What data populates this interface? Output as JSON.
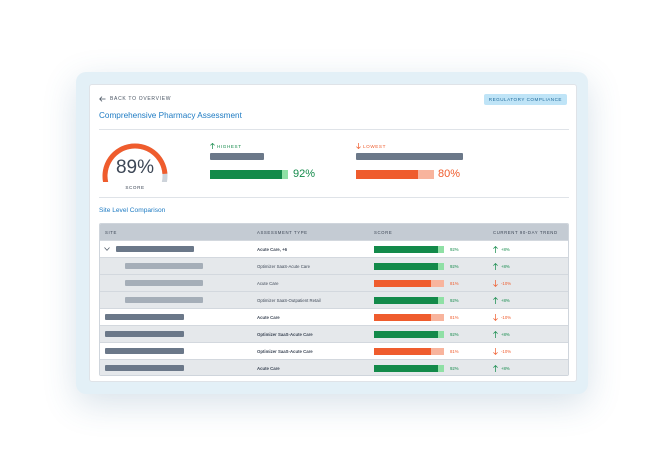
{
  "nav": {
    "back_label": "BACK TO OVERVIEW"
  },
  "badge": {
    "label": "REGULATORY COMPLIANCE"
  },
  "page": {
    "title": "Comprehensive Pharmacy Assessment"
  },
  "score": {
    "value": "89%",
    "label": "SCORE",
    "fraction": 0.89
  },
  "highest": {
    "heading": "HIGHEST",
    "percent": "92%",
    "fraction": 0.92
  },
  "lowest": {
    "heading": "LOWEST",
    "percent": "80%",
    "fraction": 0.8
  },
  "comparison": {
    "title": "Site Level Comparison",
    "columns": [
      "SITE",
      "ASSESSMENT TYPE",
      "SCORE",
      "CURRENT 90-DAY TREND"
    ],
    "rows": [
      {
        "level": "parent",
        "expanded": true,
        "type": "Acute Care, +6",
        "bold": true,
        "score_label": "92%",
        "score": 0.92,
        "status": "good",
        "trend": "+8%",
        "direction": "up"
      },
      {
        "level": "child",
        "type": "Optimizer SaaS-Acute Care",
        "bold": false,
        "score_label": "92%",
        "score": 0.92,
        "status": "good",
        "trend": "+8%",
        "direction": "up"
      },
      {
        "level": "child",
        "type": "Acute Care",
        "bold": false,
        "score_label": "81%",
        "score": 0.81,
        "status": "bad",
        "trend": "-10%",
        "direction": "down"
      },
      {
        "level": "child",
        "type": "Optimizer SaaS-Outpatient Retail",
        "bold": false,
        "score_label": "92%",
        "score": 0.92,
        "status": "good",
        "trend": "+8%",
        "direction": "up"
      },
      {
        "level": "site",
        "type": "Acute Care",
        "bold": true,
        "score_label": "81%",
        "score": 0.81,
        "status": "bad",
        "trend": "-10%",
        "direction": "down"
      },
      {
        "level": "site",
        "type": "Optimizer SaaS-Acute Care",
        "bold": true,
        "score_label": "92%",
        "score": 0.92,
        "status": "good",
        "trend": "+8%",
        "direction": "up"
      },
      {
        "level": "site",
        "type": "Optimizer SaaS-Acute Care",
        "bold": true,
        "score_label": "81%",
        "score": 0.81,
        "status": "bad",
        "trend": "-10%",
        "direction": "down"
      },
      {
        "level": "site",
        "type": "Acute Care",
        "bold": true,
        "score_label": "92%",
        "score": 0.92,
        "status": "good",
        "trend": "+8%",
        "direction": "up"
      }
    ]
  },
  "colors": {
    "good": "#138a4a",
    "good_light": "#8fe0a5",
    "bad": "#ef5c2d",
    "bad_light": "#f8b49d",
    "gauge_track": "#cdd3da",
    "accent": "#1e7bc3"
  },
  "icons": {
    "back": "arrow-left-icon",
    "up": "arrow-up-icon",
    "down": "arrow-down-icon",
    "expand": "chevron-down-icon"
  }
}
